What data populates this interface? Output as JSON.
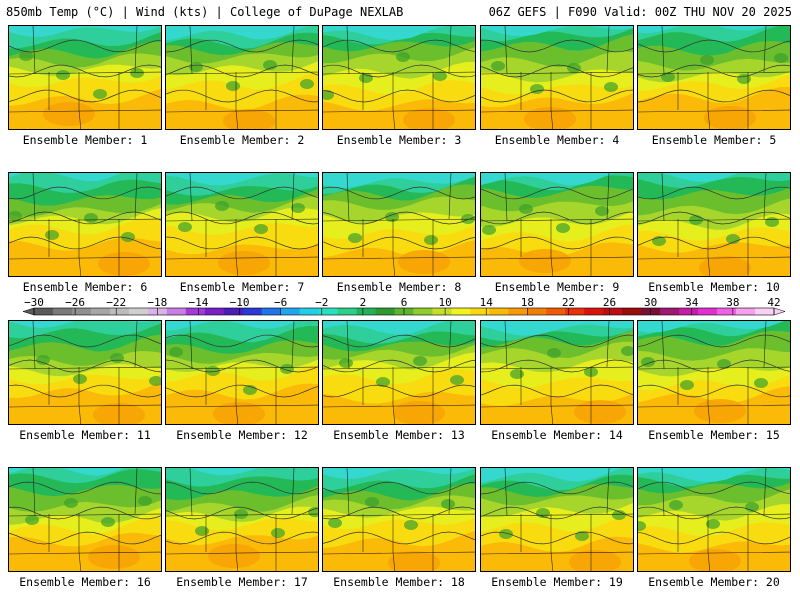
{
  "header": {
    "title": "850mb Temp (°C) | Wind (kts) | College of DuPage NEXLAB",
    "run_info": "06Z GEFS | F090 Valid: 00Z THU NOV 20 2025"
  },
  "panels": [
    {
      "label": "Ensemble Member: 1"
    },
    {
      "label": "Ensemble Member: 2"
    },
    {
      "label": "Ensemble Member: 3"
    },
    {
      "label": "Ensemble Member: 4"
    },
    {
      "label": "Ensemble Member: 5"
    },
    {
      "label": "Ensemble Member: 6"
    },
    {
      "label": "Ensemble Member: 7"
    },
    {
      "label": "Ensemble Member: 8"
    },
    {
      "label": "Ensemble Member: 9"
    },
    {
      "label": "Ensemble Member: 10"
    },
    {
      "label": "Ensemble Member: 11"
    },
    {
      "label": "Ensemble Member: 12"
    },
    {
      "label": "Ensemble Member: 13"
    },
    {
      "label": "Ensemble Member: 14"
    },
    {
      "label": "Ensemble Member: 15"
    },
    {
      "label": "Ensemble Member: 16"
    },
    {
      "label": "Ensemble Member: 17"
    },
    {
      "label": "Ensemble Member: 18"
    },
    {
      "label": "Ensemble Member: 19"
    },
    {
      "label": "Ensemble Member: 20"
    }
  ],
  "colorbar": {
    "tick_labels": [
      "−30",
      "−26",
      "−22",
      "−18",
      "−14",
      "−10",
      "−6",
      "−2",
      "2",
      "6",
      "10",
      "14",
      "18",
      "22",
      "26",
      "30",
      "34",
      "38",
      "42"
    ],
    "colors": [
      "#5a5a5a",
      "#7a7a7a",
      "#8f8f8f",
      "#a6a6a6",
      "#bcbcbc",
      "#cfcfcf",
      "#d9b2e8",
      "#c77de3",
      "#a33ad8",
      "#7a1fc4",
      "#4b1db8",
      "#2a3ad6",
      "#1f74e8",
      "#1ea7f0",
      "#20cfe6",
      "#28e0c0",
      "#2ccf8a",
      "#21b35a",
      "#2e9a2e",
      "#5cb52a",
      "#8fcc2c",
      "#c4de2a",
      "#f2f21e",
      "#f8d80e",
      "#fbb907",
      "#f79a05",
      "#f27f05",
      "#ee5a08",
      "#e8300a",
      "#d9140f",
      "#bb0f14",
      "#9a0c0c",
      "#7a0f36",
      "#9e1a72",
      "#c41ea8",
      "#e12fd0",
      "#f060e6",
      "#f6a0ee",
      "#fbd0f4"
    ]
  }
}
